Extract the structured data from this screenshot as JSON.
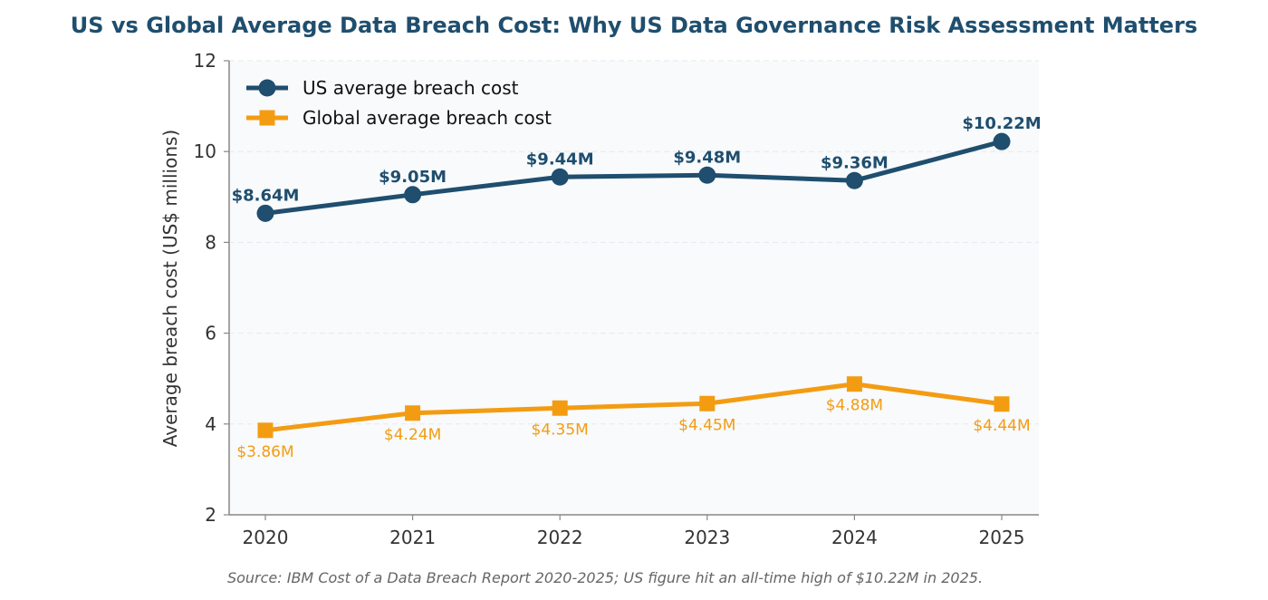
{
  "colors": {
    "title": "#1f4e6e",
    "us": "#1f4e6e",
    "global": "#f39c12",
    "plot_bg": "#f8fafc",
    "grid": "#e6e9ee",
    "axis": "#888888",
    "source": "#666666"
  },
  "chart_data": {
    "type": "line",
    "title": "US vs Global Average Data Breach Cost: Why US Data Governance Risk Assessment Matters",
    "xlabel": "",
    "ylabel": "Average breach cost (US$ millions)",
    "x": [
      2020,
      2021,
      2022,
      2023,
      2024,
      2025
    ],
    "x_tick_labels": [
      "2020",
      "2021",
      "2022",
      "2023",
      "2024",
      "2025"
    ],
    "ylim": [
      2,
      12
    ],
    "y_ticks": [
      2,
      4,
      6,
      8,
      10,
      12
    ],
    "y_tick_labels": [
      "2",
      "4",
      "6",
      "8",
      "10",
      "12"
    ],
    "grid": "horizontal dashed",
    "legend_position": "top-left",
    "series": [
      {
        "name": "US average breach cost",
        "marker": "circle",
        "values": [
          8.64,
          9.05,
          9.44,
          9.48,
          9.36,
          10.22
        ],
        "labels": [
          "$8.64M",
          "$9.05M",
          "$9.44M",
          "$9.48M",
          "$9.36M",
          "$10.22M"
        ],
        "label_position": "above"
      },
      {
        "name": "Global average breach cost",
        "marker": "square",
        "values": [
          3.86,
          4.24,
          4.35,
          4.45,
          4.88,
          4.44
        ],
        "labels": [
          "$3.86M",
          "$4.24M",
          "$4.35M",
          "$4.45M",
          "$4.88M",
          "$4.44M"
        ],
        "label_position": "below"
      }
    ],
    "source": "Source: IBM Cost of a Data Breach Report 2020-2025; US figure hit an all-time high of $10.22M in 2025."
  }
}
